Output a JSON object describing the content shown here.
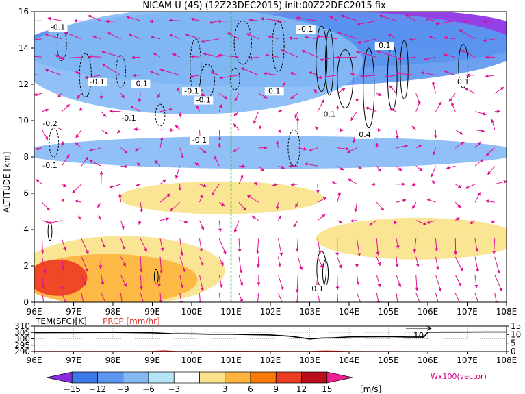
{
  "title": "NICAM U (4S) (12Z23DEC2015) init:00Z22DEC2015 fix",
  "colors": {
    "vector": "#e0118f",
    "contour": "#000000",
    "marker_line": "#22aa22",
    "label_red": "#e0332b",
    "label_magenta": "#d6007f"
  },
  "chart_data": [
    {
      "type": "heatmap",
      "name": "cross-section",
      "ylabel": "ALTITUDE [km]",
      "xlabel": "",
      "x_ticks": [
        "96E",
        "97E",
        "98E",
        "99E",
        "100E",
        "101E",
        "102E",
        "103E",
        "104E",
        "105E",
        "106E",
        "107E",
        "108E"
      ],
      "y_ticks": [
        "0",
        "2",
        "4",
        "6",
        "8",
        "10",
        "12",
        "14",
        "16"
      ],
      "xlim": [
        96,
        108
      ],
      "ylim": [
        0,
        16
      ],
      "marker_longitude": 101.0,
      "shading_bands": [
        {
          "z": [
            14.0,
            16.0
          ],
          "x": [
            101.0,
            108.0
          ],
          "level": -15
        },
        {
          "z": [
            13.0,
            15.5
          ],
          "x": [
            96.0,
            108.0
          ],
          "level": -12
        },
        {
          "z": [
            12.0,
            16.0
          ],
          "x": [
            96.0,
            108.0
          ],
          "level": -9
        },
        {
          "z": [
            10.5,
            16.0
          ],
          "x": [
            96.0,
            104.0
          ],
          "level": -6
        },
        {
          "z": [
            7.5,
            9.0
          ],
          "x": [
            96.0,
            108.0
          ],
          "level": -6
        },
        {
          "z": [
            0.0,
            3.5
          ],
          "x": [
            96.0,
            100.5
          ],
          "level": 3
        },
        {
          "z": [
            0.0,
            2.5
          ],
          "x": [
            96.0,
            99.8
          ],
          "level": 6
        },
        {
          "z": [
            0.5,
            2.2
          ],
          "x": [
            96.2,
            97.0
          ],
          "level": 12
        },
        {
          "z": [
            2.5,
            4.5
          ],
          "x": [
            103.5,
            108.0
          ],
          "level": 3
        },
        {
          "z": [
            5.0,
            6.5
          ],
          "x": [
            98.5,
            103.0
          ],
          "level": 3
        }
      ],
      "contour_labels": [
        {
          "text": "-0.1",
          "x": 96.6,
          "z": 15.0
        },
        {
          "text": "-0.1",
          "x": 97.6,
          "z": 12.0
        },
        {
          "text": "-0.1",
          "x": 98.7,
          "z": 11.9
        },
        {
          "text": "-0.1",
          "x": 98.4,
          "z": 10.0
        },
        {
          "text": "-0.1",
          "x": 100.0,
          "z": 11.5
        },
        {
          "text": "-0.1",
          "x": 100.3,
          "z": 11.0
        },
        {
          "text": "-0.2",
          "x": 96.4,
          "z": 9.7
        },
        {
          "text": "-0.1",
          "x": 96.4,
          "z": 7.4
        },
        {
          "text": "-0.1",
          "x": 100.2,
          "z": 8.8
        },
        {
          "text": "-0.1",
          "x": 102.9,
          "z": 14.9
        },
        {
          "text": "0.1",
          "x": 104.9,
          "z": 14.0
        },
        {
          "text": "0.1",
          "x": 102.1,
          "z": 11.5
        },
        {
          "text": "0.1",
          "x": 103.5,
          "z": 10.2
        },
        {
          "text": "0.4",
          "x": 104.4,
          "z": 9.1
        },
        {
          "text": "0.1",
          "x": 106.9,
          "z": 12.0
        },
        {
          "text": "0.1",
          "x": 103.2,
          "z": 0.6
        }
      ],
      "vector_grid": {
        "x_step": 0.5,
        "z_step": 1.0,
        "unit": "Wx100(vector)"
      }
    },
    {
      "type": "line",
      "name": "surface-panel",
      "labels": {
        "temp": "TEM(SFC)[K]",
        "prcp": "PRCP [mm/hr]"
      },
      "x_ticks": [
        "96E",
        "97E",
        "98E",
        "99E",
        "100E",
        "101E",
        "102E",
        "103E",
        "104E",
        "105E",
        "106E",
        "107E",
        "108E"
      ],
      "left_ticks": [
        "310",
        "305",
        "300",
        "295",
        "290"
      ],
      "right_ticks": [
        "15",
        "10",
        "5",
        "0"
      ],
      "left_ylim": [
        290,
        310
      ],
      "right_ylim": [
        0,
        15
      ],
      "arrow_label": "10",
      "series": [
        {
          "axis": "left",
          "x": [
            96,
            97,
            98,
            99,
            99.5,
            100,
            100.5,
            101,
            101.5,
            102,
            102.5,
            102.8,
            103,
            103.3,
            103.6,
            104,
            104.5,
            105,
            105.5,
            105.9,
            106.0,
            106.5,
            107,
            107.5,
            108
          ],
          "values": [
            304.8,
            304.9,
            305.0,
            304.7,
            304.0,
            303.9,
            303.6,
            303.6,
            303.3,
            303.0,
            302.0,
            300.8,
            299.8,
            300.6,
            300.8,
            301.5,
            301.6,
            301.7,
            301.4,
            301.4,
            305.2,
            305.3,
            305.3,
            305.4,
            305.4
          ]
        },
        {
          "axis": "right",
          "x": [
            96,
            99,
            99.3,
            99.6,
            101,
            103,
            103.4,
            104,
            106,
            108
          ],
          "values": [
            0.1,
            0.1,
            0.5,
            0.1,
            0.2,
            0.1,
            0.4,
            0.1,
            0.0,
            0.0
          ]
        }
      ]
    }
  ],
  "colorbar": {
    "labels": [
      "−15",
      "−12",
      "−9",
      "−6",
      "−3",
      "3",
      "6",
      "9",
      "12",
      "15"
    ],
    "colors": [
      "#8a2be2",
      "#3c78e6",
      "#5c96ef",
      "#84b9f4",
      "#b4e4f7",
      "#ffffff",
      "#fae28a",
      "#fdb43c",
      "#fb7a05",
      "#ec3c23",
      "#b90d1a",
      "#ee1f8e"
    ],
    "unit": "[m/s]"
  }
}
